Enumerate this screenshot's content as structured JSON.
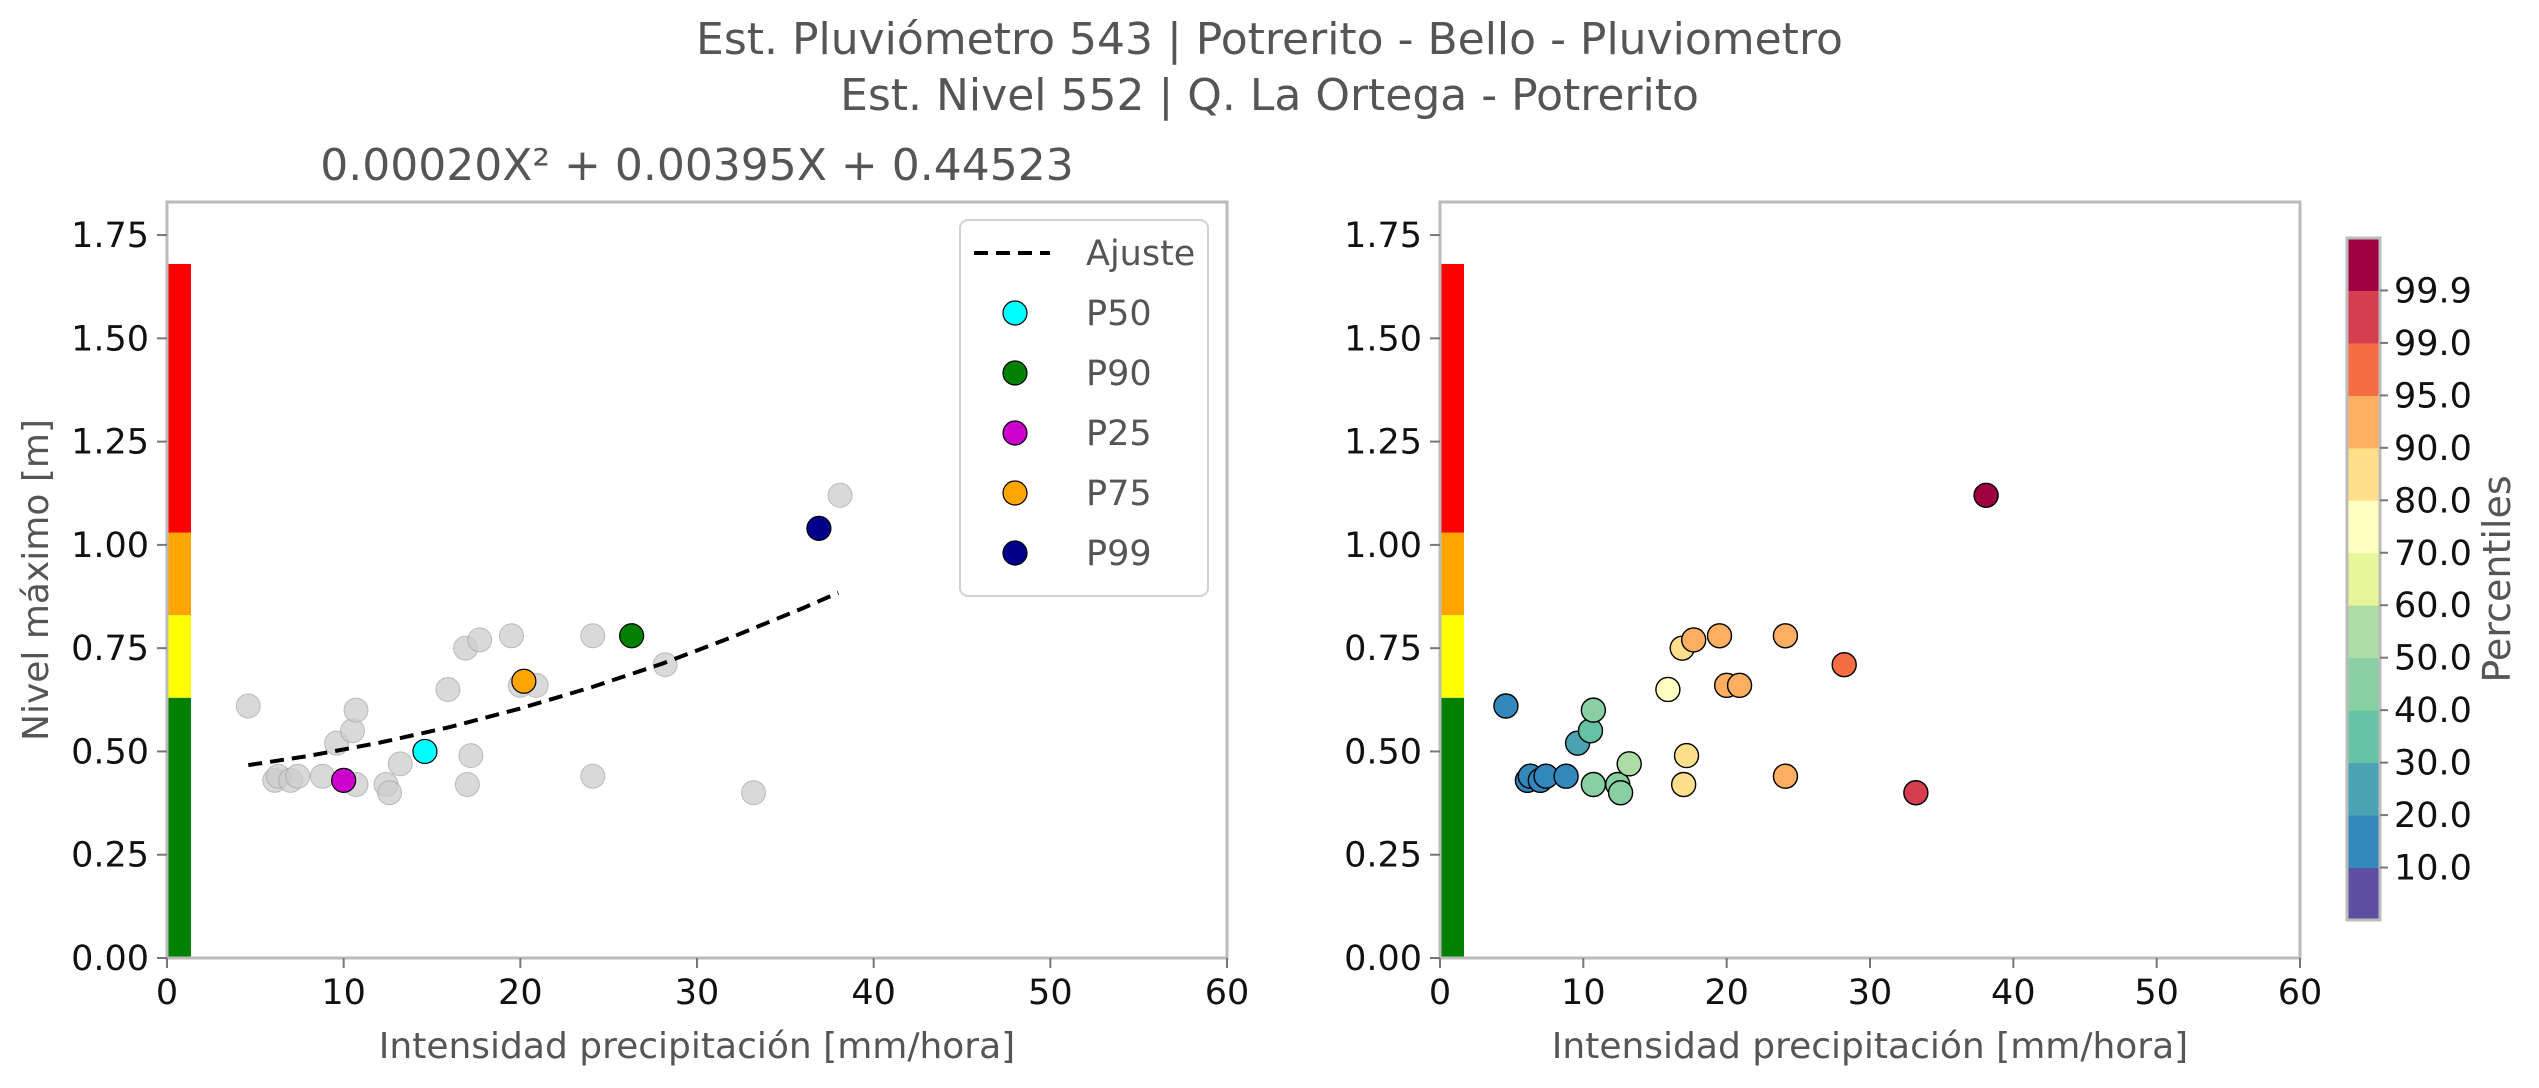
{
  "figure": {
    "title_line1": "Est. Pluviómetro 543 | Potrerito - Bello - Pluviometro",
    "title_line2": "Est. Nivel 552 | Q. La Ortega - Potrerito"
  },
  "chart_data": [
    {
      "type": "scatter",
      "title": "0.00020X² + 0.00395X + 0.44523",
      "xlabel": "Intensidad precipitación [mm/hora]",
      "ylabel": "Nivel máximo [m]",
      "xlim": [
        0,
        60
      ],
      "ylim": [
        0,
        1.83
      ],
      "xticks": [
        0,
        10,
        20,
        30,
        40,
        50,
        60
      ],
      "yticks": [
        "0.00",
        "0.25",
        "0.50",
        "0.75",
        "1.00",
        "1.25",
        "1.50",
        "1.75"
      ],
      "grid": false,
      "legend_position": "top-right",
      "threshold_bands": [
        {
          "from": 0.0,
          "to": 0.63,
          "color": "#008000"
        },
        {
          "from": 0.63,
          "to": 0.83,
          "color": "#ffff00"
        },
        {
          "from": 0.83,
          "to": 1.03,
          "color": "#ffa500"
        },
        {
          "from": 1.03,
          "to": 1.68,
          "color": "#ff0000"
        }
      ],
      "background_points": {
        "color": "#cccccc",
        "x": [
          4.6,
          6.1,
          6.3,
          7.0,
          7.4,
          8.8,
          9.6,
          10.5,
          10.7,
          10.7,
          12.4,
          12.6,
          13.2,
          15.9,
          16.9,
          17.0,
          17.2,
          17.7,
          19.5,
          20.0,
          20.9,
          24.1,
          24.1,
          28.2,
          33.2,
          38.1
        ],
        "y": [
          0.61,
          0.43,
          0.44,
          0.43,
          0.44,
          0.44,
          0.52,
          0.55,
          0.6,
          0.42,
          0.42,
          0.4,
          0.47,
          0.65,
          0.75,
          0.42,
          0.49,
          0.77,
          0.78,
          0.66,
          0.66,
          0.78,
          0.44,
          0.71,
          0.4,
          1.12
        ]
      },
      "series": [
        {
          "name": "Ajuste",
          "kind": "line",
          "style": "dashed",
          "color": "#000000",
          "x": [
            4.6,
            8,
            12,
            16,
            20,
            24,
            28,
            32,
            36,
            38
          ],
          "y": [
            0.467,
            0.489,
            0.521,
            0.559,
            0.604,
            0.655,
            0.712,
            0.777,
            0.847,
            0.884
          ]
        },
        {
          "name": "P50",
          "kind": "point",
          "color": "#00ffff",
          "x": [
            14.6
          ],
          "y": [
            0.5
          ]
        },
        {
          "name": "P90",
          "kind": "point",
          "color": "#008000",
          "x": [
            26.3
          ],
          "y": [
            0.78
          ]
        },
        {
          "name": "P25",
          "kind": "point",
          "color": "#cc00cc",
          "x": [
            10.0
          ],
          "y": [
            0.43
          ]
        },
        {
          "name": "P75",
          "kind": "point",
          "color": "#ffa500",
          "x": [
            20.2
          ],
          "y": [
            0.67
          ]
        },
        {
          "name": "P99",
          "kind": "point",
          "color": "#00008b",
          "x": [
            36.9
          ],
          "y": [
            1.04
          ]
        }
      ]
    },
    {
      "type": "scatter",
      "xlabel": "Intensidad precipitación [mm/hora]",
      "ylabel": "",
      "xlim": [
        0,
        60
      ],
      "ylim": [
        0,
        1.83
      ],
      "xticks": [
        0,
        10,
        20,
        30,
        40,
        50,
        60
      ],
      "yticks": [
        "0.00",
        "0.25",
        "0.50",
        "0.75",
        "1.00",
        "1.25",
        "1.50",
        "1.75"
      ],
      "grid": false,
      "threshold_bands": [
        {
          "from": 0.0,
          "to": 0.63,
          "color": "#008000"
        },
        {
          "from": 0.63,
          "to": 0.83,
          "color": "#ffff00"
        },
        {
          "from": 0.83,
          "to": 1.03,
          "color": "#ffa500"
        },
        {
          "from": 1.03,
          "to": 1.68,
          "color": "#ff0000"
        }
      ],
      "points": [
        {
          "x": 4.6,
          "y": 0.61,
          "color": "#3288bd"
        },
        {
          "x": 6.1,
          "y": 0.43,
          "color": "#3288bd"
        },
        {
          "x": 6.3,
          "y": 0.44,
          "color": "#3288bd"
        },
        {
          "x": 7.0,
          "y": 0.43,
          "color": "#3288bd"
        },
        {
          "x": 7.4,
          "y": 0.44,
          "color": "#3288bd"
        },
        {
          "x": 8.8,
          "y": 0.44,
          "color": "#3288bd"
        },
        {
          "x": 9.6,
          "y": 0.52,
          "color": "#4aa3b2"
        },
        {
          "x": 10.5,
          "y": 0.55,
          "color": "#66c2a5"
        },
        {
          "x": 10.7,
          "y": 0.6,
          "color": "#88d0a4"
        },
        {
          "x": 10.7,
          "y": 0.42,
          "color": "#88d0a4"
        },
        {
          "x": 12.4,
          "y": 0.42,
          "color": "#88d0a4"
        },
        {
          "x": 12.6,
          "y": 0.4,
          "color": "#88d0a4"
        },
        {
          "x": 13.2,
          "y": 0.47,
          "color": "#abdda4"
        },
        {
          "x": 15.9,
          "y": 0.65,
          "color": "#ffffbf"
        },
        {
          "x": 16.9,
          "y": 0.75,
          "color": "#fee08b"
        },
        {
          "x": 17.0,
          "y": 0.42,
          "color": "#fee08b"
        },
        {
          "x": 17.2,
          "y": 0.49,
          "color": "#fee08b"
        },
        {
          "x": 17.7,
          "y": 0.77,
          "color": "#fdae61"
        },
        {
          "x": 19.5,
          "y": 0.78,
          "color": "#fdae61"
        },
        {
          "x": 20.0,
          "y": 0.66,
          "color": "#fdae61"
        },
        {
          "x": 20.9,
          "y": 0.66,
          "color": "#fdae61"
        },
        {
          "x": 24.1,
          "y": 0.78,
          "color": "#fdae61"
        },
        {
          "x": 24.1,
          "y": 0.44,
          "color": "#fdae61"
        },
        {
          "x": 28.2,
          "y": 0.71,
          "color": "#f46d43"
        },
        {
          "x": 33.2,
          "y": 0.4,
          "color": "#d53e4f"
        },
        {
          "x": 38.1,
          "y": 1.12,
          "color": "#9e0142"
        }
      ],
      "colorbar": {
        "label": "Percentiles",
        "tick_labels": [
          "10.0",
          "20.0",
          "30.0",
          "40.0",
          "50.0",
          "60.0",
          "70.0",
          "80.0",
          "90.0",
          "95.0",
          "99.0",
          "99.9"
        ],
        "colors": [
          "#5e4fa2",
          "#3288bd",
          "#4aa3b2",
          "#66c2a5",
          "#88d0a4",
          "#abdda4",
          "#e6f598",
          "#ffffbf",
          "#fee08b",
          "#fdae61",
          "#f46d43",
          "#d53e4f",
          "#9e0142"
        ]
      }
    }
  ]
}
